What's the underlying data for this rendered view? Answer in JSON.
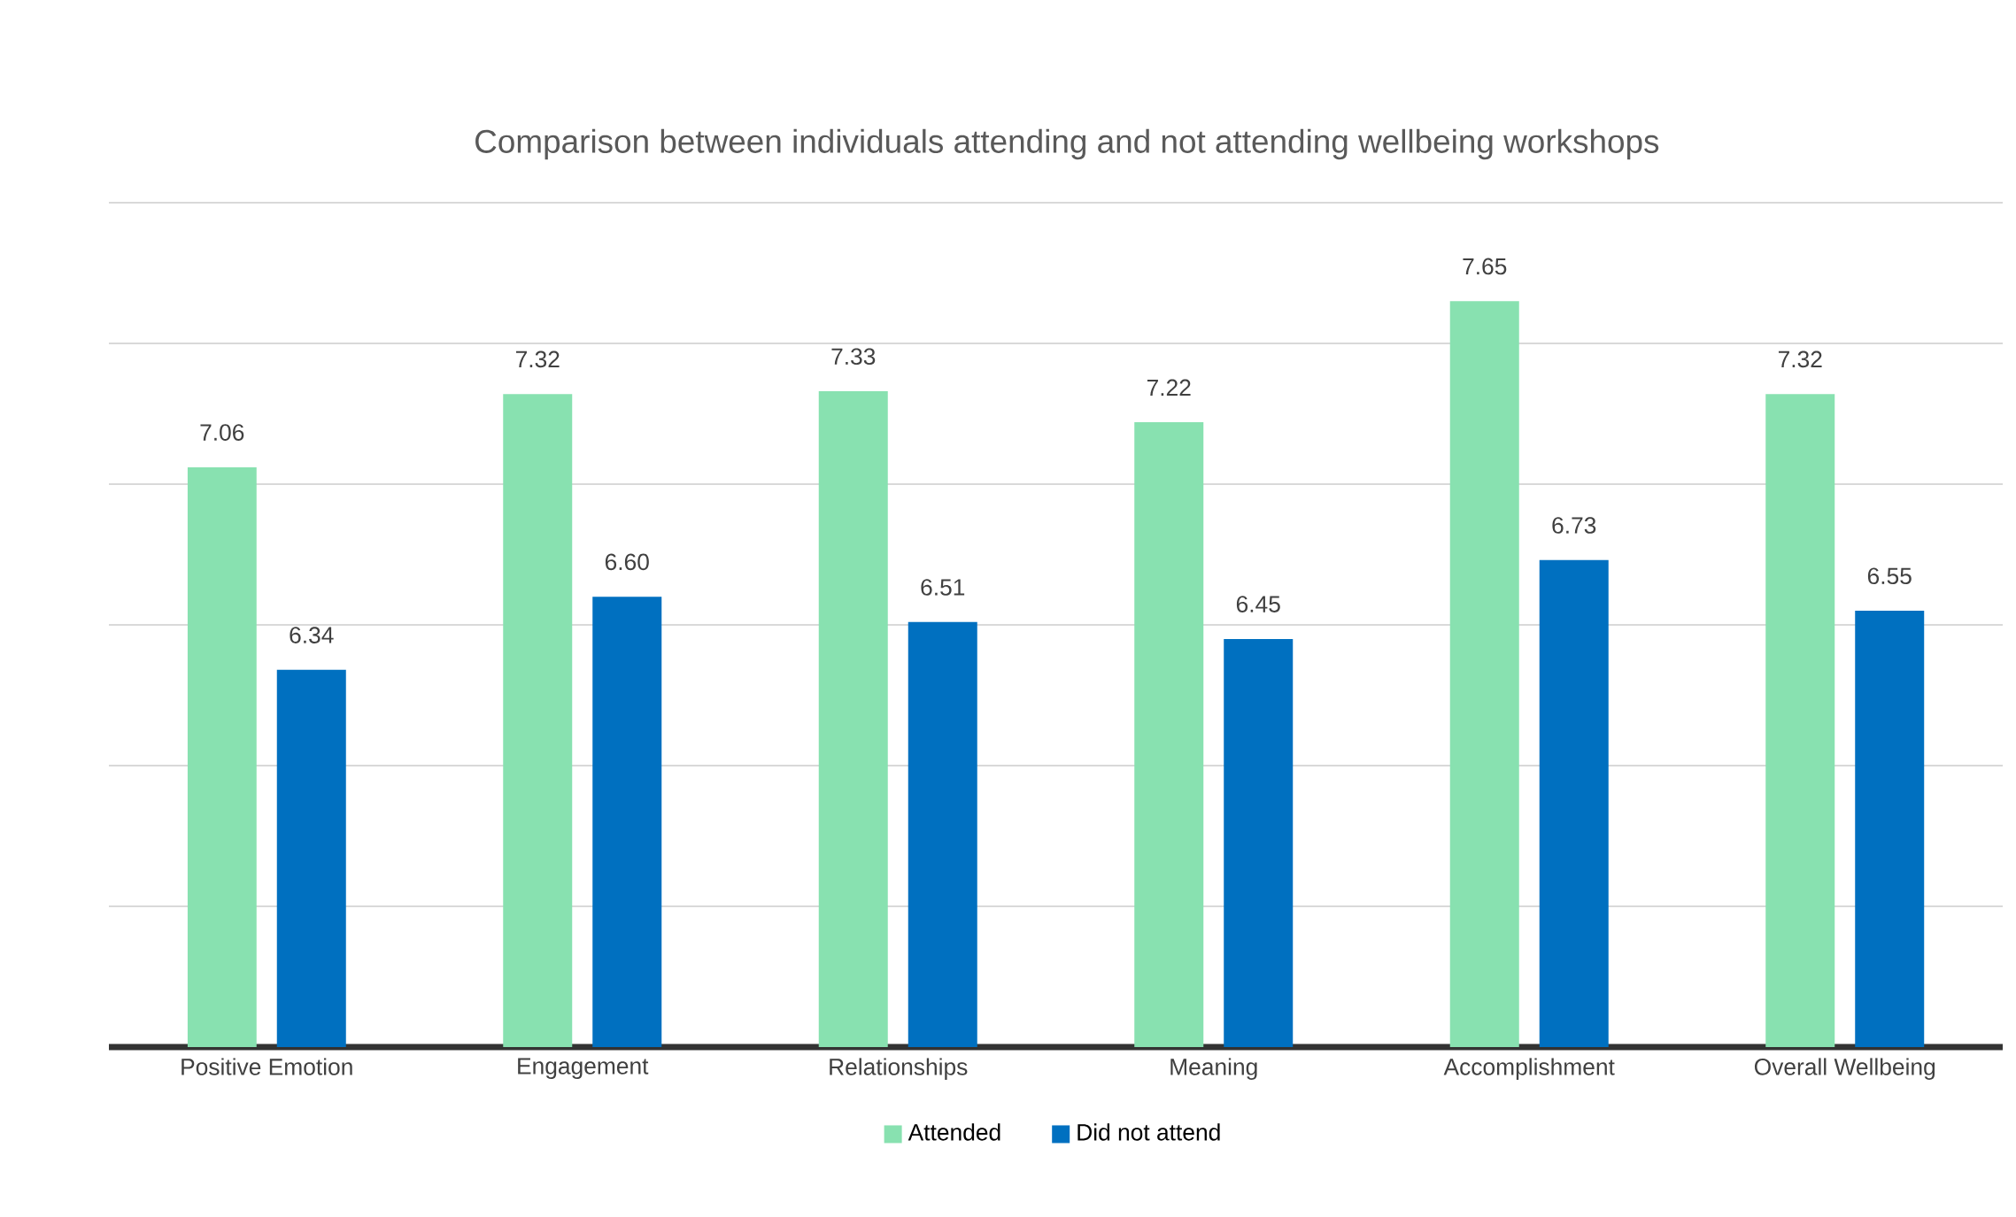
{
  "chart_data": {
    "type": "bar",
    "title": "Comparison between individuals attending and not attending wellbeing workshops",
    "categories": [
      "Positive Emotion",
      "Engagement",
      "Relationships",
      "Meaning",
      "Accomplishment",
      "Overall Wellbeing"
    ],
    "series": [
      {
        "name": "Attended",
        "color": "#88e1b0",
        "values": [
          7.06,
          7.32,
          7.33,
          7.22,
          7.65,
          7.32
        ],
        "value_labels": [
          "7.06",
          "7.32",
          "7.33",
          "7.22",
          "7.65",
          "7.32"
        ]
      },
      {
        "name": "Did not attend",
        "color": "#0070c0",
        "values": [
          6.34,
          6.6,
          6.51,
          6.45,
          6.73,
          6.55
        ],
        "value_labels": [
          "6.34",
          "6.60",
          "6.51",
          "6.45",
          "6.73",
          "6.55"
        ]
      }
    ],
    "ylim": [
      5,
      8
    ],
    "yticks": [
      {
        "value": 5,
        "label": null
      },
      {
        "value": 5.5,
        "label": null
      },
      {
        "value": 6,
        "label": null
      },
      {
        "value": 6.5,
        "label": null
      },
      {
        "value": 7,
        "label": null
      },
      {
        "value": 7.5,
        "label": null
      },
      {
        "value": 8,
        "label": null
      }
    ],
    "tick_labels": "x",
    "grid": "y",
    "legend": "bottom"
  }
}
